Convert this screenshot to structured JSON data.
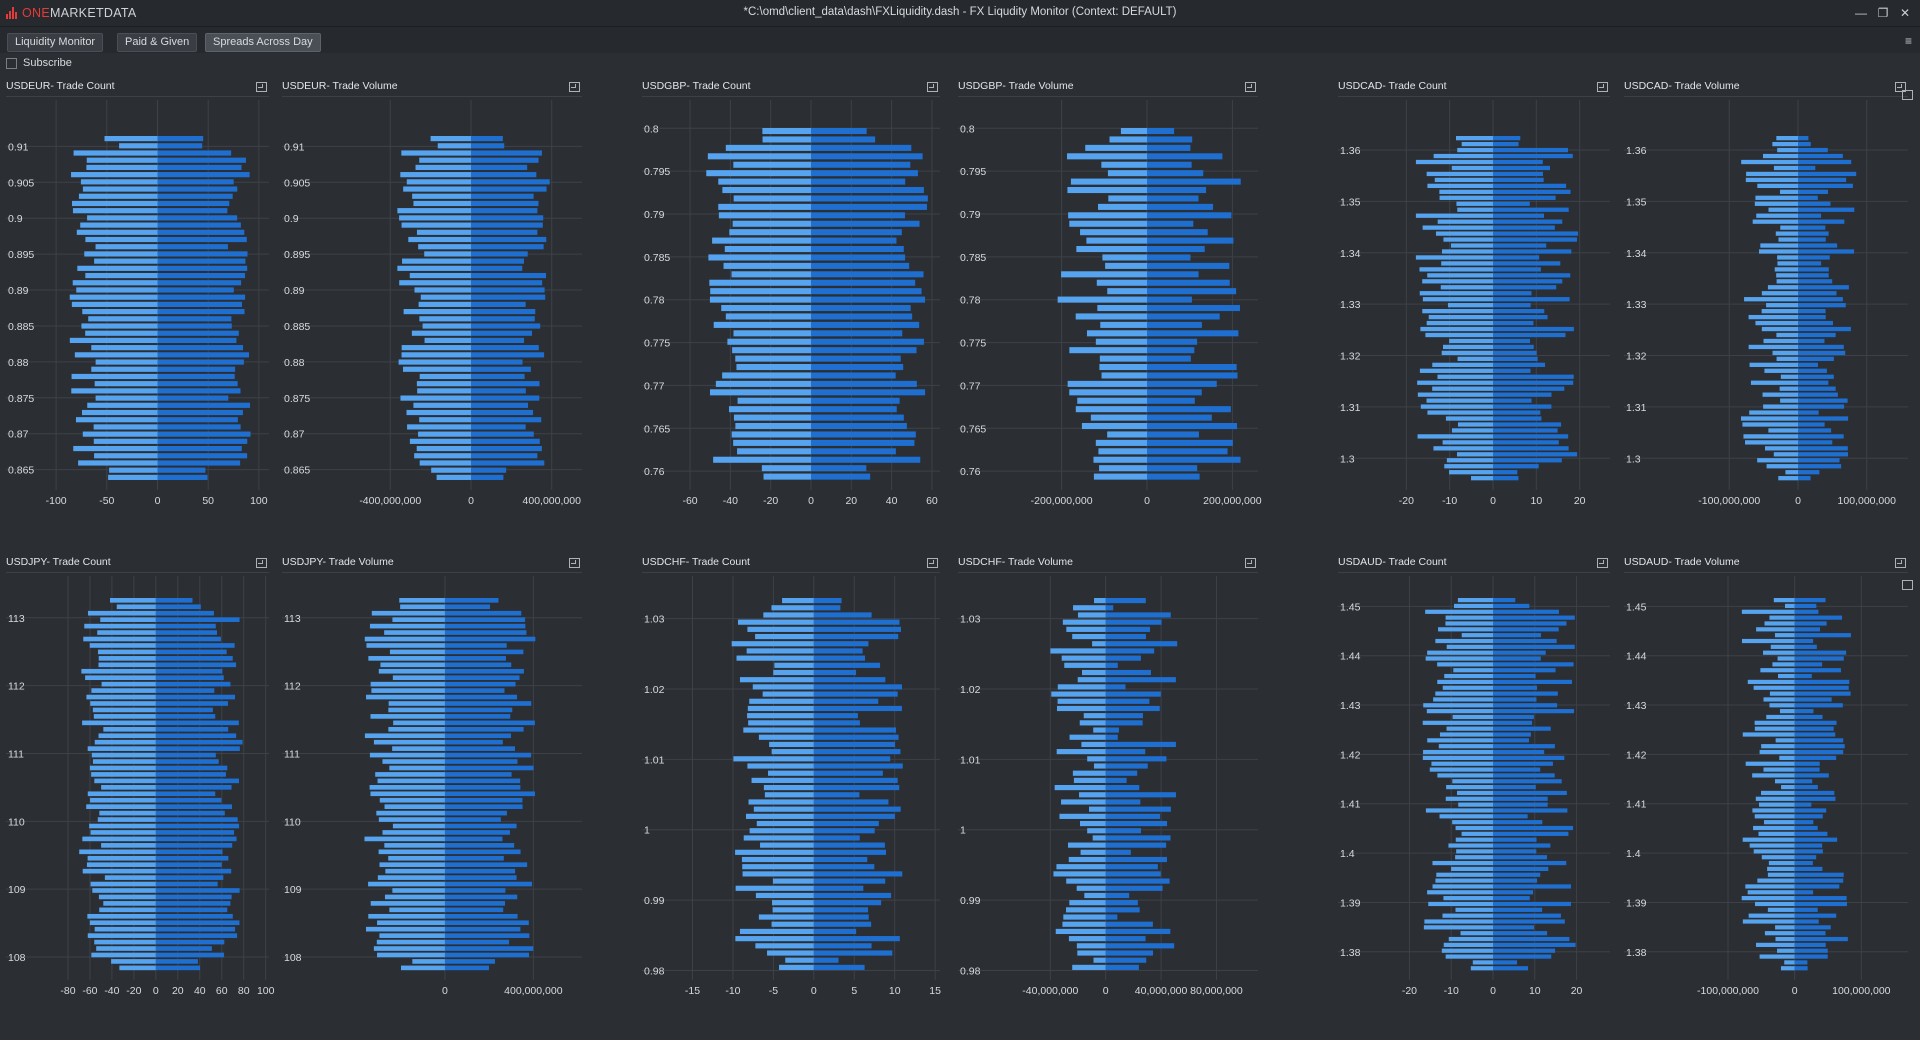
{
  "app": {
    "logo_one": "ONE",
    "logo_rest": "MARKETDATA",
    "window_title": "*C:\\omd\\client_data\\dash\\FXLiquidity.dash - FX Liqudity Monitor (Context: DEFAULT)"
  },
  "window_controls": {
    "minimize": "—",
    "restore": "❐",
    "close": "✕"
  },
  "tabs": [
    {
      "label": "Liquidity Monitor",
      "active": false
    },
    {
      "label": "Paid & Given",
      "active": false
    },
    {
      "label": "Spreads Across Day",
      "active": true
    }
  ],
  "menu_icon": "≡",
  "subscribe_label": "Subscribe",
  "colors": {
    "bid": "#56a4ef",
    "ask": "#1f6fd0",
    "grid": "#3e4248",
    "axis": "#6b7078"
  },
  "chart_data": [
    {
      "title": "USDEUR- Trade Count",
      "type": "bar",
      "orientation": "horizontal-diverging",
      "y_ticks": [
        "0.91",
        "0.905",
        "0.9",
        "0.895",
        "0.89",
        "0.885",
        "0.88",
        "0.875",
        "0.87",
        "0.865"
      ],
      "ylim": [
        0.863,
        0.912
      ],
      "x_ticks": [
        "-100",
        "-50",
        "0",
        "50",
        "100"
      ],
      "xlim": [
        -110,
        110
      ],
      "n_levels": 48,
      "neg_mean": 75,
      "neg_amp": 15,
      "pos_mean": 80,
      "pos_amp": 12,
      "seed": 11
    },
    {
      "title": "USDEUR- Trade Volume",
      "type": "bar",
      "orientation": "horizontal-diverging",
      "y_ticks": [
        "0.91",
        "0.905",
        "0.9",
        "0.895",
        "0.89",
        "0.885",
        "0.88",
        "0.875",
        "0.87",
        "0.865"
      ],
      "ylim": [
        0.863,
        0.912
      ],
      "x_ticks": [
        "-400,000,000",
        "0",
        "400,000,000"
      ],
      "xlim": [
        -550000000,
        550000000
      ],
      "n_levels": 48,
      "neg_mean": 300000000,
      "neg_amp": 70000000,
      "pos_mean": 320000000,
      "pos_amp": 70000000,
      "seed": 12
    },
    {
      "title": "USDGBP- Trade Count",
      "type": "bar",
      "orientation": "horizontal-diverging",
      "y_ticks": [
        "0.8",
        "0.795",
        "0.79",
        "0.785",
        "0.78",
        "0.775",
        "0.77",
        "0.765",
        "0.76"
      ],
      "ylim": [
        0.7585,
        0.8005
      ],
      "x_ticks": [
        "-60",
        "-40",
        "-20",
        "0",
        "20",
        "40",
        "60"
      ],
      "xlim": [
        -64,
        64
      ],
      "n_levels": 42,
      "neg_mean": 44,
      "neg_amp": 8,
      "pos_mean": 50,
      "pos_amp": 8,
      "seed": 21
    },
    {
      "title": "USDGBP- Trade Volume",
      "type": "bar",
      "orientation": "horizontal-diverging",
      "y_ticks": [
        "0.8",
        "0.795",
        "0.79",
        "0.785",
        "0.78",
        "0.775",
        "0.77",
        "0.765",
        "0.76"
      ],
      "ylim": [
        0.7585,
        0.8005
      ],
      "x_ticks": [
        "-200,000,000",
        "0",
        "200,000,000"
      ],
      "xlim": [
        -260000000,
        260000000
      ],
      "n_levels": 42,
      "neg_mean": 150000000,
      "neg_amp": 60000000,
      "pos_mean": 160000000,
      "pos_amp": 60000000,
      "seed": 22
    },
    {
      "title": "USDCAD- Trade Count",
      "type": "bar",
      "orientation": "horizontal-diverging",
      "y_ticks": [
        "1.36",
        "1.35",
        "1.34",
        "1.33",
        "1.32",
        "1.31",
        "1.3"
      ],
      "ylim": [
        1.295,
        1.3635
      ],
      "x_ticks": [
        "-20",
        "-10",
        "0",
        "10",
        "20"
      ],
      "xlim": [
        -27,
        27
      ],
      "n_levels": 58,
      "neg_mean": 13,
      "neg_amp": 5,
      "pos_mean": 14,
      "pos_amp": 6,
      "seed": 31
    },
    {
      "title": "USDCAD- Trade Volume",
      "type": "bar",
      "orientation": "horizontal-diverging",
      "y_ticks": [
        "1.36",
        "1.35",
        "1.34",
        "1.33",
        "1.32",
        "1.31",
        "1.3"
      ],
      "ylim": [
        1.295,
        1.3635
      ],
      "x_ticks": [
        "-100,000,000",
        "0",
        "100,000,000"
      ],
      "xlim": [
        -160000000,
        160000000
      ],
      "n_levels": 58,
      "neg_mean": 55000000,
      "neg_amp": 30000000,
      "pos_mean": 55000000,
      "pos_amp": 30000000,
      "seed": 32
    },
    {
      "title": "USDJPY- Trade Count",
      "type": "bar",
      "orientation": "horizontal-diverging",
      "y_ticks": [
        "113",
        "112",
        "111",
        "110",
        "109",
        "108"
      ],
      "ylim": [
        107.75,
        113.35
      ],
      "x_ticks": [
        "-80",
        "-60",
        "-40",
        "-20",
        "0",
        "20",
        "40",
        "60",
        "80",
        "100"
      ],
      "xlim": [
        -100,
        103
      ],
      "n_levels": 58,
      "neg_mean": 58,
      "neg_amp": 12,
      "pos_mean": 65,
      "pos_amp": 14,
      "seed": 41
    },
    {
      "title": "USDJPY- Trade Volume",
      "type": "bar",
      "orientation": "horizontal-diverging",
      "y_ticks": [
        "113",
        "112",
        "111",
        "110",
        "109",
        "108"
      ],
      "ylim": [
        107.75,
        113.35
      ],
      "x_ticks": [
        "0",
        "400,000,000"
      ],
      "xlim": [
        -520000000,
        620000000
      ],
      "n_levels": 58,
      "neg_mean": 300000000,
      "neg_amp": 70000000,
      "pos_mean": 330000000,
      "pos_amp": 80000000,
      "seed": 42
    },
    {
      "title": "USDCHF- Trade Count",
      "type": "bar",
      "orientation": "horizontal-diverging",
      "y_ticks": [
        "1.03",
        "1.02",
        "1.01",
        "1",
        "0.99",
        "0.98"
      ],
      "ylim": [
        0.9795,
        1.0335
      ],
      "x_ticks": [
        "-15",
        "-10",
        "-5",
        "0",
        "5",
        "10",
        "15"
      ],
      "xlim": [
        -16.3,
        15.6
      ],
      "n_levels": 52,
      "neg_mean": 7.5,
      "neg_amp": 3,
      "pos_mean": 8,
      "pos_amp": 3,
      "seed": 51
    },
    {
      "title": "USDCHF- Trade Volume",
      "type": "bar",
      "orientation": "horizontal-diverging",
      "y_ticks": [
        "1.03",
        "1.02",
        "1.01",
        "1",
        "0.99",
        "0.98"
      ],
      "ylim": [
        0.9795,
        1.0335
      ],
      "x_ticks": [
        "-40,000,000",
        "0",
        "40,000,000",
        "80,000,000"
      ],
      "xlim": [
        -72000000,
        110000000
      ],
      "n_levels": 52,
      "neg_mean": 25000000,
      "neg_amp": 17000000,
      "pos_mean": 30000000,
      "pos_amp": 22000000,
      "seed": 52
    },
    {
      "title": "USDAUD- Trade Count",
      "type": "bar",
      "orientation": "horizontal-diverging",
      "y_ticks": [
        "1.45",
        "1.44",
        "1.43",
        "1.42",
        "1.41",
        "1.4",
        "1.39",
        "1.38"
      ],
      "ylim": [
        1.3755,
        1.4525
      ],
      "x_ticks": [
        "-20",
        "-10",
        "0",
        "10",
        "20"
      ],
      "xlim": [
        -28,
        28
      ],
      "n_levels": 64,
      "neg_mean": 12,
      "neg_amp": 5,
      "pos_mean": 14,
      "pos_amp": 6,
      "seed": 61
    },
    {
      "title": "USDAUD- Trade Volume",
      "type": "bar",
      "orientation": "horizontal-diverging",
      "y_ticks": [
        "1.45",
        "1.44",
        "1.43",
        "1.42",
        "1.41",
        "1.4",
        "1.39",
        "1.38"
      ],
      "ylim": [
        1.3755,
        1.4525
      ],
      "x_ticks": [
        "-100,000,000",
        "0",
        "100,000,000"
      ],
      "xlim": [
        -160000000,
        170000000
      ],
      "n_levels": 64,
      "neg_mean": 50000000,
      "neg_amp": 30000000,
      "pos_mean": 55000000,
      "pos_amp": 30000000,
      "seed": 62
    }
  ]
}
